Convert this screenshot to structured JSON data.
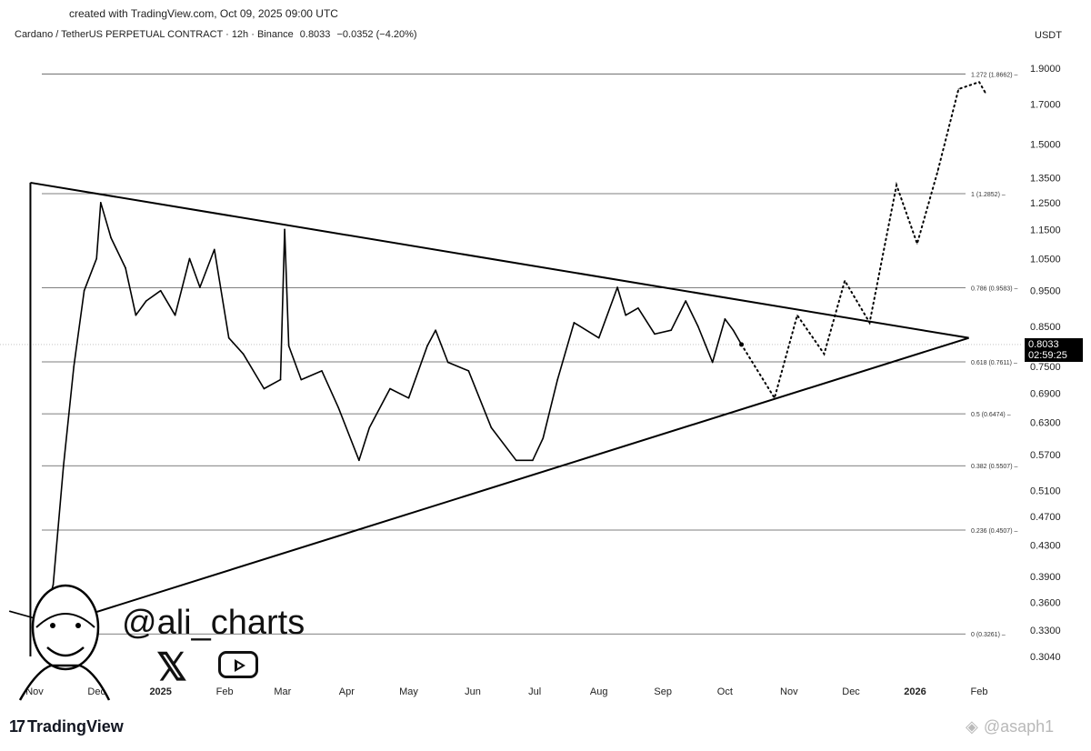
{
  "caption": "created with TradingView.com, Oct 09, 2025 09:00 UTC",
  "header": {
    "symbol": "Cardano / TetherUS PERPETUAL CONTRACT · 12h · Binance",
    "price": "0.8033",
    "change": "−0.0352 (−4.20%)"
  },
  "currency": "USDT",
  "current_price_tag": {
    "price": "0.8033",
    "countdown": "02:59:25"
  },
  "branding": {
    "logo_text": "TradingView",
    "handle": "@ali_charts",
    "watermark": "@asaph1"
  },
  "chart_data": {
    "type": "line",
    "title": "Cardano / TetherUS PERPETUAL CONTRACT · 12h · Binance",
    "y_scale": "log",
    "y_ticks": [
      "1.9000",
      "1.7000",
      "1.5000",
      "1.3500",
      "1.2500",
      "1.1500",
      "1.0500",
      "0.9500",
      "0.8500",
      "0.7500",
      "0.6900",
      "0.6300",
      "0.5700",
      "0.5100",
      "0.4700",
      "0.4300",
      "0.3900",
      "0.3600",
      "0.3300",
      "0.3040"
    ],
    "x_ticks": [
      "Nov",
      "Dec",
      "2025",
      "Feb",
      "Mar",
      "Apr",
      "May",
      "Jun",
      "Jul",
      "Aug",
      "Sep",
      "Oct",
      "Nov",
      "Dec",
      "2026",
      "Feb"
    ],
    "fib_levels": [
      {
        "label": "1.272 (1.8662)",
        "value": 1.8662
      },
      {
        "label": "1 (1.2852)",
        "value": 1.2852
      },
      {
        "label": "0.786 (0.9583)",
        "value": 0.9583
      },
      {
        "label": "0.618 (0.7611)",
        "value": 0.7611
      },
      {
        "label": "0.5 (0.6474)",
        "value": 0.6474
      },
      {
        "label": "0.382 (0.5507)",
        "value": 0.5507
      },
      {
        "label": "0.236 (0.4507)",
        "value": 0.4507
      },
      {
        "label": "0 (0.3261)",
        "value": 0.3261
      }
    ],
    "price_series": {
      "x": [
        "2024-10-20",
        "2024-11-05",
        "2024-11-10",
        "2024-11-15",
        "2024-11-20",
        "2024-11-25",
        "2024-12-01",
        "2024-12-03",
        "2024-12-08",
        "2024-12-15",
        "2024-12-20",
        "2024-12-25",
        "2025-01-01",
        "2025-01-08",
        "2025-01-15",
        "2025-01-20",
        "2025-01-27",
        "2025-02-03",
        "2025-02-10",
        "2025-02-20",
        "2025-02-28",
        "2025-03-02",
        "2025-03-04",
        "2025-03-10",
        "2025-03-20",
        "2025-03-28",
        "2025-04-07",
        "2025-04-12",
        "2025-04-22",
        "2025-05-01",
        "2025-05-10",
        "2025-05-14",
        "2025-05-20",
        "2025-05-30",
        "2025-06-10",
        "2025-06-22",
        "2025-06-30",
        "2025-07-05",
        "2025-07-12",
        "2025-07-20",
        "2025-08-01",
        "2025-08-10",
        "2025-08-14",
        "2025-08-20",
        "2025-08-28",
        "2025-09-05",
        "2025-09-12",
        "2025-09-18",
        "2025-09-25",
        "2025-10-01",
        "2025-10-05",
        "2025-10-09"
      ],
      "y": [
        0.35,
        0.34,
        0.38,
        0.55,
        0.75,
        0.95,
        1.05,
        1.25,
        1.12,
        1.02,
        0.88,
        0.92,
        0.95,
        0.88,
        1.05,
        0.96,
        1.08,
        0.82,
        0.78,
        0.7,
        0.72,
        1.15,
        0.8,
        0.72,
        0.74,
        0.66,
        0.56,
        0.62,
        0.7,
        0.68,
        0.8,
        0.84,
        0.76,
        0.74,
        0.62,
        0.56,
        0.56,
        0.6,
        0.72,
        0.86,
        0.82,
        0.96,
        0.88,
        0.9,
        0.83,
        0.84,
        0.92,
        0.85,
        0.76,
        0.87,
        0.84,
        0.8033
      ]
    },
    "projection": {
      "x": [
        "2025-10-09",
        "2025-10-25",
        "2025-11-05",
        "2025-11-18",
        "2025-11-28",
        "2025-12-10",
        "2025-12-23",
        "2026-01-02",
        "2026-01-12",
        "2026-01-22",
        "2026-02-01",
        "2026-02-04"
      ],
      "y": [
        0.8033,
        0.68,
        0.88,
        0.78,
        0.98,
        0.86,
        1.32,
        1.1,
        1.38,
        1.78,
        1.82,
        1.76
      ]
    },
    "triangle": {
      "upper": {
        "from": {
          "x": "2024-10-30",
          "y": 1.33
        },
        "to": {
          "x": "2026-01-27",
          "y": 0.82
        }
      },
      "lower": {
        "from": {
          "x": "2024-11-03",
          "y": 0.33
        },
        "to": {
          "x": "2026-01-27",
          "y": 0.82
        }
      }
    }
  }
}
